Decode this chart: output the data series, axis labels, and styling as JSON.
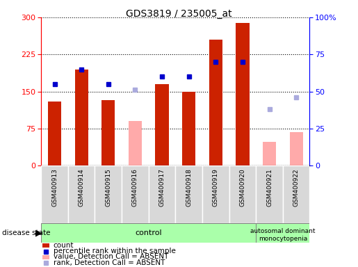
{
  "title": "GDS3819 / 235005_at",
  "samples": [
    "GSM400913",
    "GSM400914",
    "GSM400915",
    "GSM400916",
    "GSM400917",
    "GSM400918",
    "GSM400919",
    "GSM400920",
    "GSM400921",
    "GSM400922"
  ],
  "count_values": [
    130,
    195,
    132,
    null,
    165,
    150,
    255,
    288,
    null,
    null
  ],
  "count_absent": [
    null,
    null,
    null,
    90,
    null,
    null,
    null,
    null,
    48,
    68
  ],
  "rank_present": [
    55,
    65,
    55,
    null,
    60,
    60,
    70,
    70,
    null,
    null
  ],
  "rank_absent": [
    null,
    null,
    null,
    51,
    null,
    null,
    null,
    null,
    38,
    46
  ],
  "ylim_left": [
    0,
    300
  ],
  "ylim_right": [
    0,
    100
  ],
  "yticks_left": [
    0,
    75,
    150,
    225,
    300
  ],
  "yticks_right": [
    0,
    25,
    50,
    75,
    100
  ],
  "ytick_labels_right": [
    "0",
    "25",
    "50",
    "75",
    "100%"
  ],
  "bar_color_present": "#cc2200",
  "bar_color_absent": "#ffaaaa",
  "marker_color_present": "#0000cc",
  "marker_color_absent": "#aaaadd",
  "sample_bg": "#d8d8d8",
  "plot_bg": "#ffffff",
  "control_bg": "#aaffaa",
  "disease_bg": "#aaffaa",
  "control_label": "control",
  "disease_label": "autosomal dominant\nmonocytopenia",
  "disease_state_label": "disease state",
  "n_control": 8,
  "legend": [
    {
      "label": "count",
      "color": "#cc2200",
      "type": "rect"
    },
    {
      "label": "percentile rank within the sample",
      "color": "#0000cc",
      "type": "square"
    },
    {
      "label": "value, Detection Call = ABSENT",
      "color": "#ffaaaa",
      "type": "rect"
    },
    {
      "label": "rank, Detection Call = ABSENT",
      "color": "#aaaadd",
      "type": "square"
    }
  ]
}
